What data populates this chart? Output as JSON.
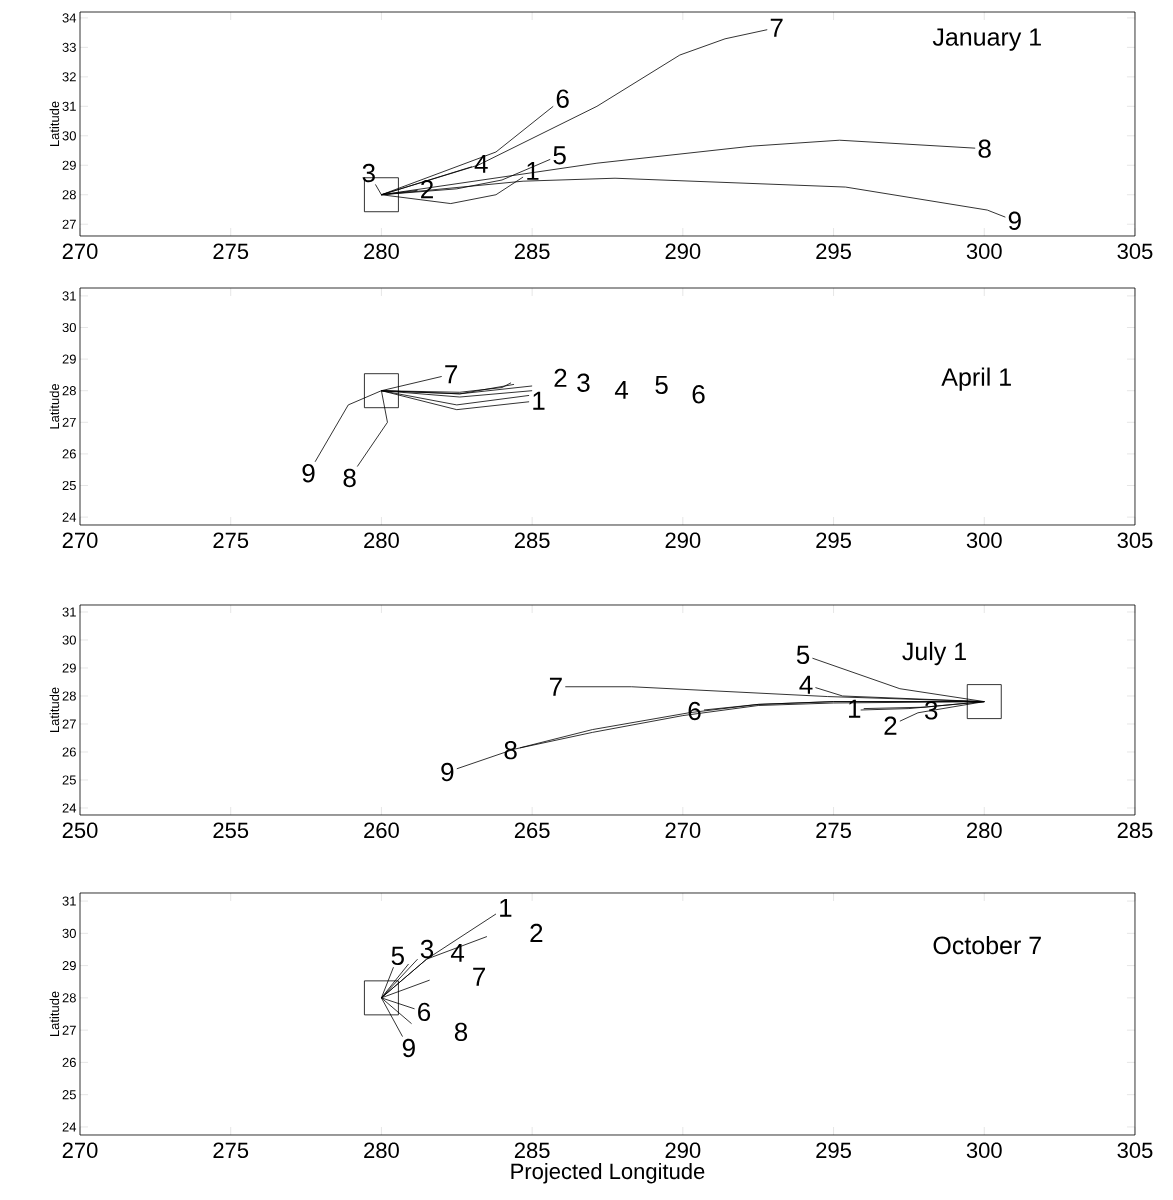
{
  "chart_data": [
    {
      "type": "line",
      "title": "January 1",
      "ylabel": "Latitude",
      "xlim": [
        270,
        305
      ],
      "ylim": [
        26.6,
        34.2
      ],
      "xticks": [
        270,
        275,
        280,
        285,
        290,
        295,
        300,
        305
      ],
      "yticks": [
        27,
        28,
        29,
        30,
        31,
        32,
        33,
        34
      ],
      "series": [
        {
          "name": "1",
          "color": "#000000",
          "x": [
            280,
            282.3,
            283.8,
            284.7
          ],
          "values": [
            28,
            27.7,
            28.0,
            28.6
          ]
        },
        {
          "name": "2",
          "color": "#000000",
          "x": [
            280,
            281.2
          ],
          "values": [
            28,
            28.15
          ]
        },
        {
          "name": "3",
          "color": "#000000",
          "x": [
            280,
            279.8
          ],
          "values": [
            28,
            28.35
          ]
        },
        {
          "name": "4",
          "color": "#000000",
          "x": [
            280,
            283.0
          ],
          "values": [
            28,
            28.95
          ]
        },
        {
          "name": "5",
          "color": "#000000",
          "x": [
            280,
            282.5,
            284.0,
            285.6
          ],
          "values": [
            28,
            28.2,
            28.5,
            29.2
          ]
        },
        {
          "name": "6",
          "color": "#000000",
          "x": [
            280,
            283.8,
            285.7
          ],
          "values": [
            28,
            29.45,
            31.0
          ]
        },
        {
          "name": "7",
          "color": "#000000",
          "x": [
            280,
            283.2,
            287.15,
            289.9,
            291.4,
            292.8
          ],
          "values": [
            28,
            29.0,
            31.0,
            32.74,
            33.29,
            33.6
          ]
        },
        {
          "name": "8",
          "color": "#000000",
          "x": [
            280,
            287.15,
            292.3,
            295.2,
            299.7
          ],
          "values": [
            28,
            29.07,
            29.65,
            29.85,
            29.58
          ]
        },
        {
          "name": "9",
          "color": "#000000",
          "x": [
            280,
            284.7,
            287.75,
            295.4,
            300.1,
            300.7
          ],
          "values": [
            28,
            28.46,
            28.56,
            28.26,
            27.48,
            27.24
          ]
        },
        {
          "type": "scatter",
          "marker": "square",
          "color": "#000000",
          "x": [
            280
          ],
          "values": [
            28
          ]
        }
      ]
    },
    {
      "type": "line",
      "title": "April 1",
      "ylabel": "Latitude",
      "xlim": [
        270,
        305
      ],
      "ylim": [
        23.75,
        31.25
      ],
      "xticks": [
        270,
        275,
        280,
        285,
        290,
        295,
        300,
        305
      ],
      "yticks": [
        24,
        25,
        26,
        27,
        28,
        29,
        30,
        31
      ],
      "series": [
        {
          "name": "1",
          "color": "#000000",
          "x": [
            280,
            282.5,
            284.9
          ],
          "values": [
            28,
            27.4,
            27.65
          ]
        },
        {
          "name": "2",
          "color": "#000000",
          "x": [
            280,
            282.6,
            284.0,
            284.3
          ],
          "values": [
            28,
            27.95,
            28.1,
            28.25
          ]
        },
        {
          "name": "3",
          "color": "#000000",
          "x": [
            280,
            282.6,
            284.4
          ],
          "values": [
            28,
            27.9,
            28.2
          ]
        },
        {
          "name": "4",
          "color": "#000000",
          "x": [
            280,
            282.6,
            285.0
          ],
          "values": [
            28,
            27.8,
            28.0
          ]
        },
        {
          "name": "5",
          "color": "#000000",
          "x": [
            280,
            282.6,
            285.0
          ],
          "values": [
            28,
            27.9,
            28.15
          ]
        },
        {
          "name": "6",
          "color": "#000000",
          "x": [
            280,
            282.5,
            284.9
          ],
          "values": [
            28,
            27.55,
            27.85
          ]
        },
        {
          "name": "7",
          "color": "#000000",
          "x": [
            280,
            282.0
          ],
          "values": [
            28,
            28.45
          ]
        },
        {
          "name": "8",
          "color": "#000000",
          "x": [
            280,
            280.2,
            279.2
          ],
          "values": [
            28,
            27.0,
            25.6
          ]
        },
        {
          "name": "9",
          "color": "#000000",
          "x": [
            280,
            278.9,
            277.8
          ],
          "values": [
            28,
            27.55,
            25.75
          ]
        },
        {
          "type": "scatter",
          "marker": "square",
          "color": "#000000",
          "x": [
            280
          ],
          "values": [
            28
          ]
        }
      ]
    },
    {
      "type": "line",
      "title": "July 1",
      "ylabel": "Latitude",
      "xlim": [
        250,
        285
      ],
      "ylim": [
        23.75,
        31.25
      ],
      "xticks": [
        250,
        255,
        260,
        265,
        270,
        275,
        280,
        285
      ],
      "yticks": [
        24,
        25,
        26,
        27,
        28,
        29,
        30,
        31
      ],
      "series": [
        {
          "name": "1",
          "color": "#000000",
          "x": [
            280,
            278,
            276.0
          ],
          "values": [
            27.8,
            27.6,
            27.55
          ]
        },
        {
          "name": "2",
          "color": "#000000",
          "x": [
            280,
            277.8,
            277.2
          ],
          "values": [
            27.8,
            27.4,
            27.1
          ]
        },
        {
          "name": "3",
          "color": "#000000",
          "x": [
            280,
            277.5,
            275.9
          ],
          "values": [
            27.8,
            27.55,
            27.5
          ]
        },
        {
          "name": "4",
          "color": "#000000",
          "x": [
            280,
            275.3,
            274.4
          ],
          "values": [
            27.8,
            28.0,
            28.3
          ]
        },
        {
          "name": "5",
          "color": "#000000",
          "x": [
            280,
            277.2,
            274.3
          ],
          "values": [
            27.8,
            28.26,
            29.35
          ]
        },
        {
          "name": "6",
          "color": "#000000",
          "x": [
            280,
            275,
            272.5,
            270.7
          ],
          "values": [
            27.8,
            27.8,
            27.7,
            27.5
          ]
        },
        {
          "name": "7",
          "color": "#000000",
          "x": [
            280,
            274.8,
            268.3,
            266.1
          ],
          "values": [
            27.8,
            27.98,
            28.33,
            28.33
          ]
        },
        {
          "name": "8",
          "color": "#000000",
          "x": [
            280,
            275,
            272.5,
            270.2,
            267,
            264.6
          ],
          "values": [
            27.8,
            27.8,
            27.7,
            27.4,
            26.8,
            26.15
          ]
        },
        {
          "name": "9",
          "color": "#000000",
          "x": [
            280,
            275,
            272.5,
            270,
            267,
            264.4,
            262.5
          ],
          "values": [
            27.8,
            27.75,
            27.66,
            27.3,
            26.7,
            26.1,
            25.4
          ]
        },
        {
          "type": "scatter",
          "marker": "square",
          "color": "#000000",
          "x": [
            280
          ],
          "values": [
            27.8
          ]
        }
      ]
    },
    {
      "type": "line",
      "title": "October 7",
      "ylabel": "Latitude",
      "xlabel": "Projected Longitude",
      "xlim": [
        270,
        305
      ],
      "ylim": [
        23.75,
        31.25
      ],
      "xticks": [
        270,
        275,
        280,
        285,
        290,
        295,
        300,
        305
      ],
      "yticks": [
        24,
        25,
        26,
        27,
        28,
        29,
        30,
        31
      ],
      "series": [
        {
          "name": "1",
          "color": "#000000",
          "x": [
            280,
            281.5,
            283.8
          ],
          "values": [
            28,
            29.2,
            30.6
          ]
        },
        {
          "name": "2",
          "color": "#000000",
          "x": [
            280,
            281.5,
            283.5
          ],
          "values": [
            28,
            29.2,
            29.9
          ]
        },
        {
          "name": "3",
          "color": "#000000",
          "x": [
            280,
            281.2
          ],
          "values": [
            28,
            29.2
          ]
        },
        {
          "name": "4",
          "color": "#000000",
          "x": [
            280,
            280.9
          ],
          "values": [
            28,
            29.05
          ]
        },
        {
          "name": "5",
          "color": "#000000",
          "x": [
            280,
            280.4
          ],
          "values": [
            28,
            28.95
          ]
        },
        {
          "name": "6",
          "color": "#000000",
          "x": [
            280,
            281.1
          ],
          "values": [
            28,
            27.66
          ]
        },
        {
          "name": "7",
          "color": "#000000",
          "x": [
            280,
            281.6
          ],
          "values": [
            28,
            28.55
          ]
        },
        {
          "name": "8",
          "color": "#000000",
          "x": [
            280,
            281.0
          ],
          "values": [
            28,
            27.2
          ]
        },
        {
          "name": "9",
          "color": "#000000",
          "x": [
            280,
            280.7
          ],
          "values": [
            28,
            26.8
          ]
        },
        {
          "type": "scatter",
          "marker": "square",
          "color": "#000000",
          "x": [
            280
          ],
          "values": [
            28
          ]
        }
      ]
    }
  ]
}
